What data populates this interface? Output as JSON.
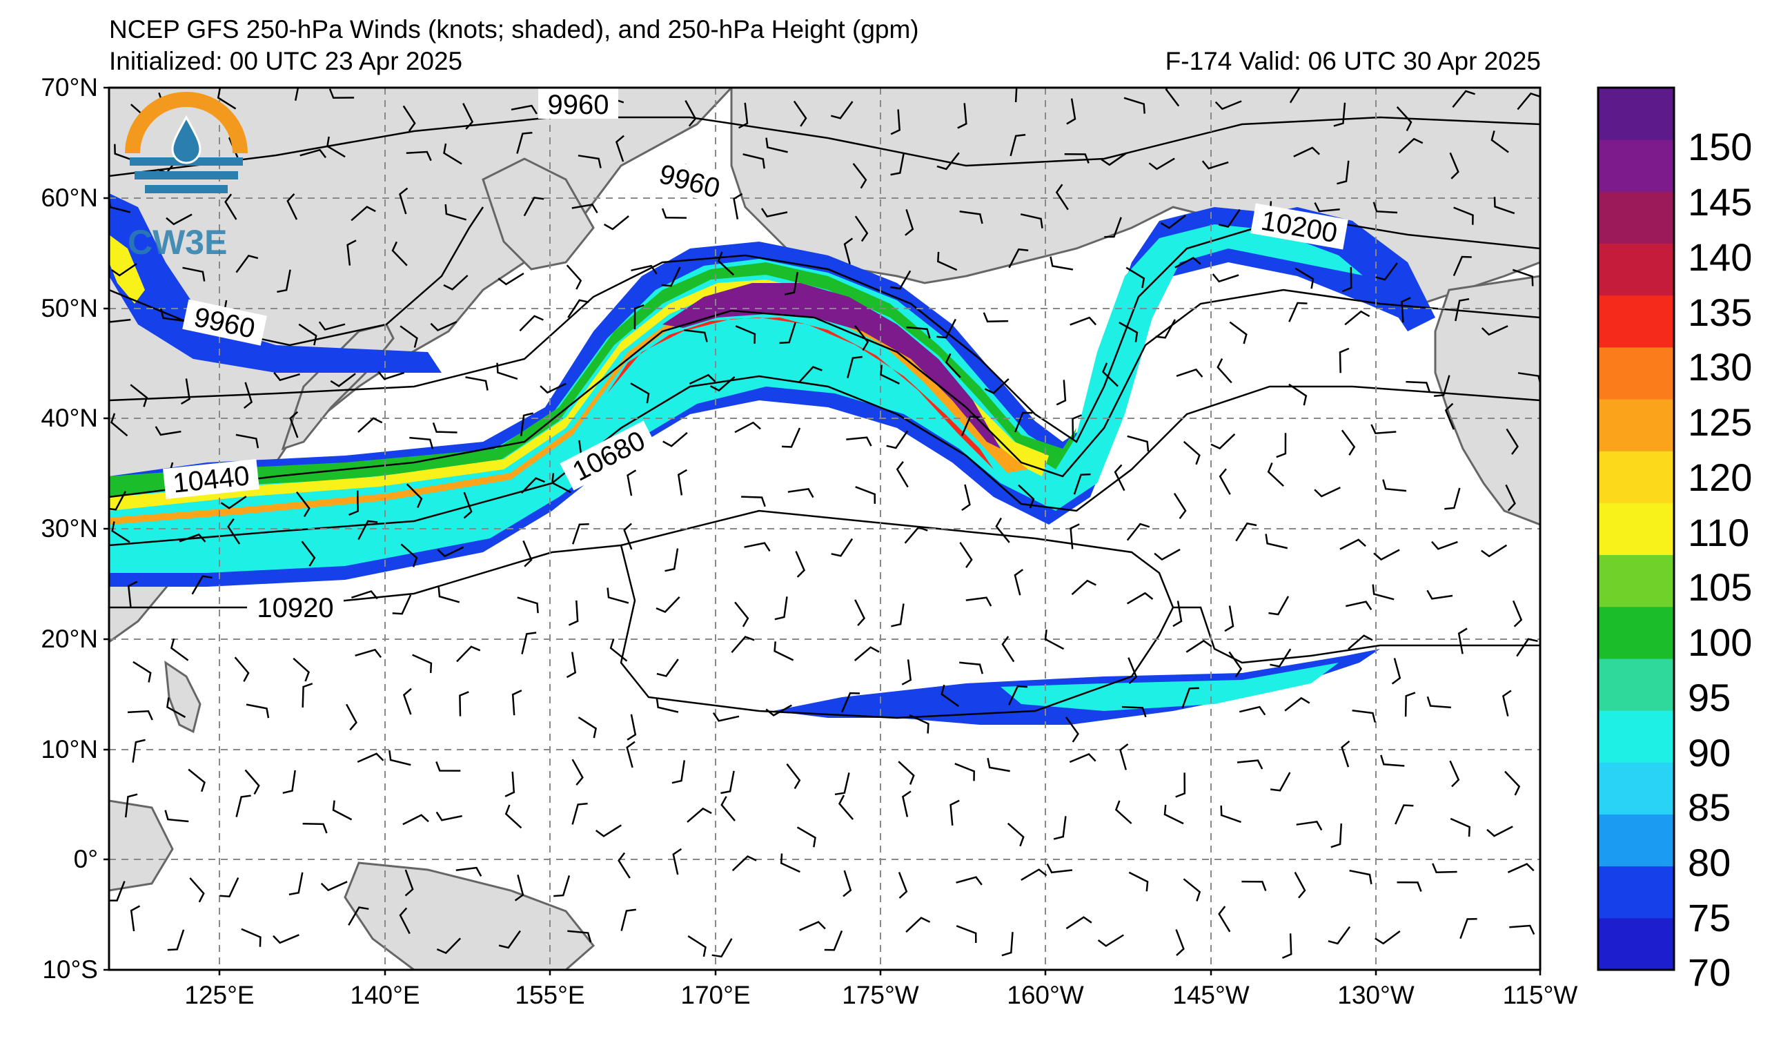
{
  "header": {
    "title": "NCEP GFS 250-hPa Winds (knots; shaded), and 250-hPa Height (gpm)",
    "initialized": "Initialized: 00 UTC 23 Apr 2025",
    "valid": "F-174  Valid: 06 UTC 30 Apr 2025"
  },
  "logo": {
    "text": "CW3E"
  },
  "map": {
    "lon_range": [
      "115°E",
      "115°W"
    ],
    "lat_range": [
      "10°S",
      "70°N"
    ],
    "lat_labels": [
      "70°N",
      "60°N",
      "50°N",
      "40°N",
      "30°N",
      "20°N",
      "10°N",
      "0°",
      "10°S"
    ],
    "lon_labels": [
      "125°E",
      "140°E",
      "155°E",
      "170°E",
      "175°W",
      "160°W",
      "145°W",
      "130°W",
      "115°W"
    ],
    "height_contour_labels": [
      "9960",
      "9960",
      "9960",
      "10200",
      "10440",
      "10680",
      "10920"
    ]
  },
  "colorbar": {
    "label_values": [
      "150",
      "145",
      "140",
      "135",
      "130",
      "125",
      "120",
      "110",
      "105",
      "100",
      "95",
      "90",
      "85",
      "80",
      "75",
      "70"
    ],
    "levels": [
      70,
      75,
      80,
      85,
      90,
      95,
      100,
      105,
      110,
      120,
      125,
      130,
      135,
      140,
      145,
      150
    ],
    "colors": [
      "#1d1fcf",
      "#1540ea",
      "#1c9bf2",
      "#28d3f5",
      "#1ef0e6",
      "#2ed99b",
      "#1bbd2a",
      "#6fd12a",
      "#f9f21a",
      "#fcd91a",
      "#fba31a",
      "#fb7c1a",
      "#f62a1a",
      "#c51c3c",
      "#9c1a5a",
      "#7d1b8c",
      "#5c1a8a"
    ]
  }
}
